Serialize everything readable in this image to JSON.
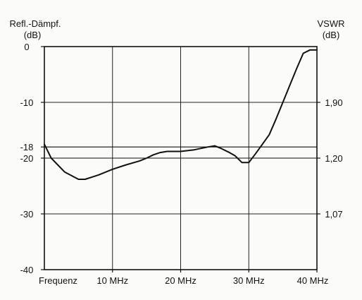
{
  "chart_data": {
    "type": "line",
    "left_axis": {
      "label_line1": "Refl.-Dämpf.",
      "label_line2": "(dB)",
      "ylim": [
        -40,
        0
      ],
      "tick_values": [
        0,
        -10,
        -18,
        -20,
        -30,
        -40
      ],
      "tick_labels": [
        "0",
        "-10",
        "-18",
        "-20",
        "-30",
        "-40"
      ]
    },
    "right_axis": {
      "label_line1": "VSWR",
      "label_line2": "(dB)",
      "tick_positions_db": [
        -10,
        -20,
        -30
      ],
      "tick_labels": [
        "1,90",
        "1,20",
        "1,07"
      ]
    },
    "x_axis": {
      "xlim": [
        0,
        40
      ],
      "tick_values": [
        0,
        10,
        20,
        30,
        40
      ],
      "tick_labels": [
        "Frequenz",
        "10 MHz",
        "20 MHz",
        "30 MHz",
        "40 MHz"
      ]
    },
    "reference_lines_db": [
      -18,
      -20
    ],
    "grid": true,
    "series": [
      {
        "x": [
          0,
          1,
          3,
          5,
          6,
          8,
          10,
          12,
          14,
          15,
          16,
          17,
          18,
          20,
          22,
          24,
          25,
          26,
          27,
          28,
          29,
          30,
          31,
          32,
          33,
          34,
          35,
          36,
          37,
          38,
          39,
          40
        ],
        "y": [
          -17.5,
          -20,
          -22.5,
          -23.8,
          -23.8,
          -23,
          -22,
          -21.2,
          -20.5,
          -20,
          -19.4,
          -19,
          -18.8,
          -18.8,
          -18.5,
          -18,
          -17.8,
          -18.3,
          -18.9,
          -19.6,
          -20.8,
          -20.8,
          -19.2,
          -17.5,
          -15.8,
          -13,
          -10,
          -7,
          -4,
          -1.2,
          -0.6,
          -0.6
        ]
      }
    ]
  }
}
